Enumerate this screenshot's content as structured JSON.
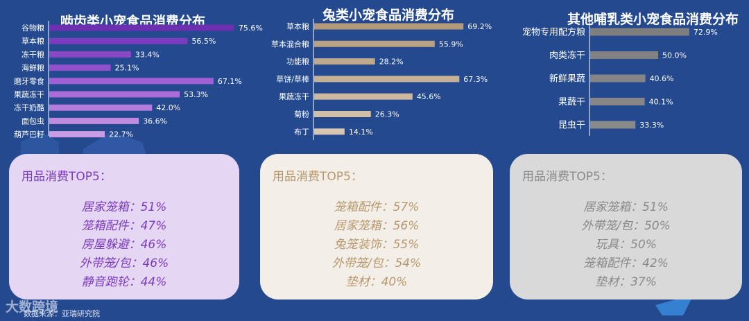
{
  "chart_data": [
    {
      "type": "bar",
      "orientation": "horizontal",
      "title": "啮齿类小宠食品消费分布",
      "categories": [
        "谷物粮",
        "草本粮",
        "冻干粮",
        "海鲜粮",
        "磨牙零食",
        "果蔬冻干",
        "冻干奶酪",
        "面包虫",
        "葫芦巴籽"
      ],
      "values": [
        75.6,
        56.5,
        33.4,
        25.1,
        67.1,
        53.3,
        42.0,
        36.6,
        22.7
      ],
      "value_labels": [
        "75.6%",
        "56.5%",
        "33.4%",
        "25.1%",
        "67.1%",
        "53.3%",
        "42.0%",
        "36.6%",
        "22.7%"
      ],
      "colors": [
        "#6b2fb0",
        "#7a3cbc",
        "#8948c6",
        "#9350cc",
        "#a05fd2",
        "#aa6bd8",
        "#b47ddc",
        "#bf8ce0",
        "#c99de6"
      ],
      "xlim": [
        0,
        100
      ]
    },
    {
      "type": "bar",
      "orientation": "horizontal",
      "title": "兔类小宠食品消费分布",
      "categories": [
        "草本粮",
        "草本混合粮",
        "功能粮",
        "草饼/草棒",
        "果蔬冻干",
        "菊粉",
        "布丁"
      ],
      "values": [
        69.2,
        55.9,
        28.2,
        67.3,
        45.6,
        26.3,
        14.1
      ],
      "value_labels": [
        "69.2%",
        "55.9%",
        "28.2%",
        "67.3%",
        "45.6%",
        "26.3%",
        "14.1%"
      ],
      "colors": [
        "#b39a79",
        "#b9a283",
        "#bfa98c",
        "#c6b196",
        "#cbb89f",
        "#d1bfa8",
        "#d7c6b2"
      ],
      "xlim": [
        0,
        100
      ]
    },
    {
      "type": "bar",
      "orientation": "horizontal",
      "title": "其他哺乳类小宠食品消费分布",
      "categories": [
        "宠物专用配方粮",
        "肉类冻干",
        "新鲜果蔬",
        "果蔬干",
        "昆虫干"
      ],
      "values": [
        72.9,
        50.0,
        40.6,
        40.1,
        33.3
      ],
      "value_labels": [
        "72.9%",
        "50.0%",
        "40.6%",
        "40.1%",
        "33.3%"
      ],
      "colors": [
        "#7f7f7f",
        "#828282",
        "#858585",
        "#878787",
        "#8a8a8a"
      ],
      "xlim": [
        0,
        100
      ]
    }
  ],
  "cards": [
    {
      "title": "用品消费TOP5：",
      "items": [
        "居家笼箱：51%",
        "笼箱配件：47%",
        "房屋躲避：46%",
        "外带笼/包：46%",
        "静音跑轮：44%"
      ],
      "bg_color": "#e5d6f4",
      "text_color": "#7a3cbc"
    },
    {
      "title": "用品消费TOP5：",
      "items": [
        "笼箱配件：57%",
        "居家笼箱：56%",
        "兔笼装饰：55%",
        "外带笼/包：54%",
        "垫材：40%"
      ],
      "bg_color": "#f3efe8",
      "text_color": "#b7986d"
    },
    {
      "title": "用品消费TOP5：",
      "items": [
        "居家笼箱：51%",
        "外带笼/包：50%",
        "玩具：50%",
        "笼箱配件：42%",
        "垫材：37%"
      ],
      "bg_color": "#d9d9d9",
      "text_color": "#8a8a8a"
    }
  ],
  "footer": {
    "logo": "大数跨境",
    "source": "数据来源：亚瑞研究院"
  },
  "colors": {
    "background": "#24498f",
    "axis": "#ffffff",
    "label_text": "#ffffff"
  }
}
